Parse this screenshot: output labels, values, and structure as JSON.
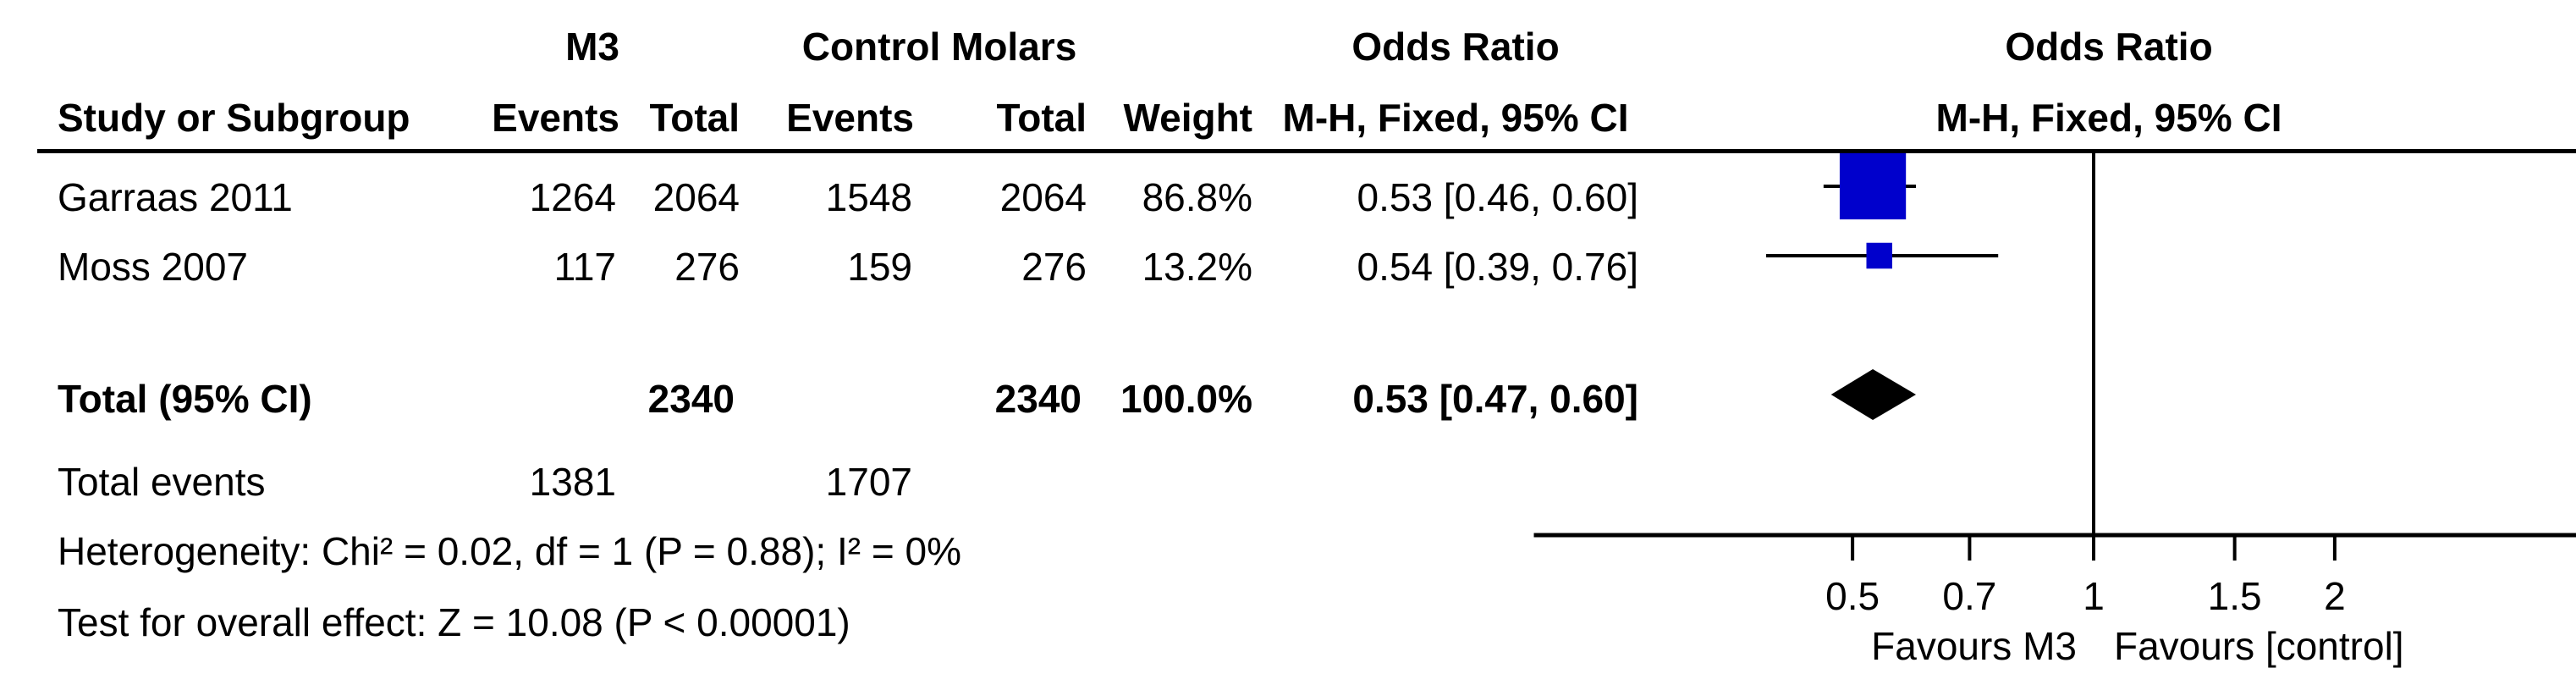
{
  "header": {
    "group1": "M3",
    "group2": "Control Molars",
    "or_table_top": "Odds Ratio",
    "or_table_sub": "M-H, Fixed, 95% CI",
    "or_plot_top": "Odds Ratio",
    "or_plot_sub": "M-H, Fixed, 95% CI",
    "study": "Study or Subgroup",
    "events1": "Events",
    "total1": "Total",
    "events2": "Events",
    "total2": "Total",
    "weight": "Weight"
  },
  "studies": [
    {
      "name": "Garraas 2011",
      "events1": "1264",
      "total1": "2064",
      "events2": "1548",
      "total2": "2064",
      "weight": "86.8%",
      "ci_text": "0.53 [0.46, 0.60]"
    },
    {
      "name": "Moss 2007",
      "events1": "117",
      "total1": "276",
      "events2": "159",
      "total2": "276",
      "weight": "13.2%",
      "ci_text": "0.54 [0.39, 0.76]"
    }
  ],
  "total": {
    "label": "Total (95% CI)",
    "total1": "2340",
    "total2": "2340",
    "weight": "100.0%",
    "ci_text": "0.53 [0.47, 0.60]"
  },
  "total_events": {
    "label": "Total events",
    "events1": "1381",
    "events2": "1707"
  },
  "heterogeneity": "Heterogeneity: Chi² = 0.02, df = 1 (P = 0.88); I² = 0%",
  "overall_effect": "Test for overall effect: Z = 10.08 (P < 0.00001)",
  "axis": {
    "ticks": [
      "0.5",
      "0.7",
      "1",
      "1.5",
      "2"
    ],
    "favours_left": "Favours M3",
    "favours_right": "Favours [control]"
  },
  "chart_data": {
    "type": "forest",
    "scale": "log",
    "xlim": [
      0.2,
      5
    ],
    "null_line": 1,
    "tick_values": [
      0.5,
      0.7,
      1,
      1.5,
      2
    ],
    "studies": [
      {
        "name": "Garraas 2011",
        "or": 0.53,
        "lower": 0.46,
        "upper": 0.6,
        "weight": 86.8
      },
      {
        "name": "Moss 2007",
        "or": 0.54,
        "lower": 0.39,
        "upper": 0.76,
        "weight": 13.2
      }
    ],
    "pooled": {
      "or": 0.53,
      "lower": 0.47,
      "upper": 0.6
    },
    "colors": {
      "box": "#0000CC",
      "diamond": "#000000",
      "line": "#000000"
    }
  }
}
